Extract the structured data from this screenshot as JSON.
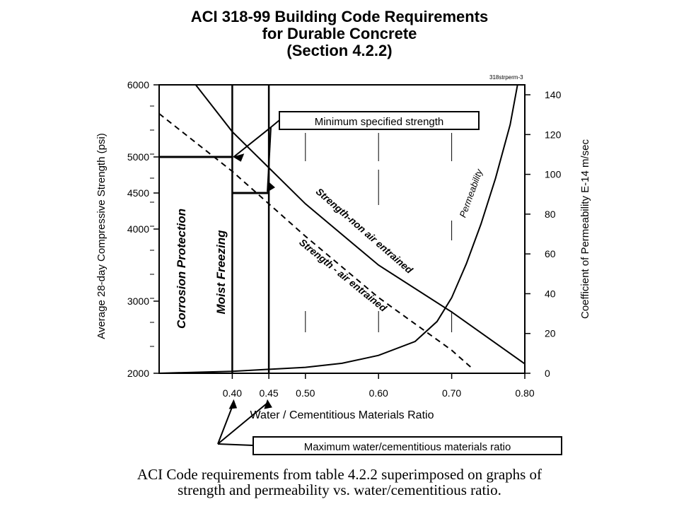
{
  "title_lines": [
    "ACI 318-99 Building Code Requirements",
    "for Durable Concrete",
    "(Section 4.2.2)"
  ],
  "figure_id": "318strperm-3",
  "caption_lines": [
    "ACI Code requirements from table 4.2.2 superimposed on graphs of",
    "strength and permeability vs. water/cementitious ratio."
  ],
  "chart_data": {
    "type": "line",
    "xlabel": "Water / Cementitious Materials Ratio",
    "ylabel_left": "Average 28-day Compressive Strength (psi)",
    "ylabel_right": "Coefficient of Permeability E-14 m/sec",
    "xlim": [
      0.3,
      0.8
    ],
    "ylim_left": [
      2000,
      6000
    ],
    "ylim_right": [
      0,
      145
    ],
    "x_ticks": [
      "0.40",
      "0.45",
      "0.50",
      "0.60",
      "0.70",
      "0.80"
    ],
    "y_ticks_left": [
      "2000",
      "3000",
      "4000",
      "4500",
      "5000",
      "6000"
    ],
    "y_ticks_right": [
      "0",
      "20",
      "40",
      "60",
      "80",
      "100",
      "120",
      "140"
    ],
    "series": [
      {
        "name": "Strength-non air entrained",
        "axis": "left",
        "style": "solid",
        "x": [
          0.35,
          0.4,
          0.5,
          0.6,
          0.7,
          0.8
        ],
        "y": [
          6000,
          5350,
          4350,
          3500,
          2850,
          2130
        ]
      },
      {
        "name": "Strength - air entrained",
        "axis": "left",
        "style": "dashed",
        "x": [
          0.3,
          0.4,
          0.5,
          0.6,
          0.7,
          0.73
        ],
        "y": [
          5600,
          4800,
          3900,
          3050,
          2320,
          2050
        ]
      },
      {
        "name": "Permeability",
        "axis": "right",
        "style": "solid",
        "x": [
          0.3,
          0.4,
          0.45,
          0.5,
          0.55,
          0.6,
          0.65,
          0.68,
          0.7,
          0.72,
          0.74,
          0.76,
          0.78,
          0.79
        ],
        "y": [
          0,
          1,
          2,
          3,
          5,
          9,
          16,
          26,
          38,
          55,
          75,
          98,
          125,
          145
        ]
      }
    ],
    "requirements": [
      {
        "label": "Corrosion Protection",
        "max_ratio": 0.4,
        "min_strength": 5000
      },
      {
        "label": "Moist Freezing",
        "max_ratio": 0.45,
        "min_strength": 4500
      }
    ],
    "callouts": {
      "min_strength": "Minimum specified strength",
      "max_ratio": "Maximum water/cementitious materials ratio"
    }
  }
}
